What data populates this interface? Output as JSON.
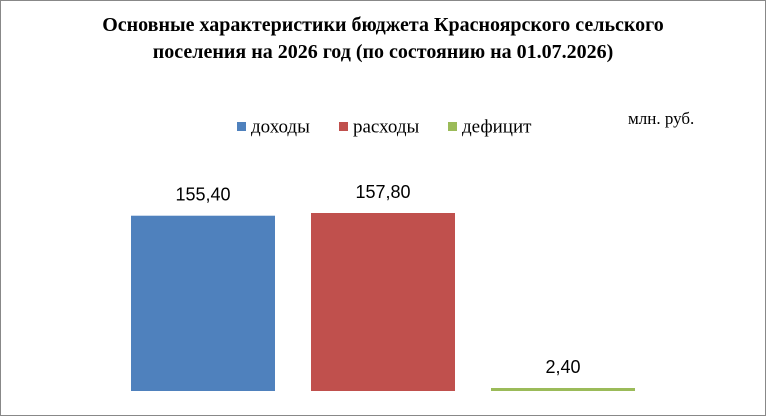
{
  "chart_data": {
    "type": "bar",
    "title": "Основные характеристики бюджета Красноярского сельского поселения на 2026 год (по состоянию на 01.07.2026)",
    "unit_label": "млн. руб.",
    "series": [
      {
        "name": "доходы",
        "color": "#4f81bd",
        "values": [
          155.4
        ],
        "value_labels": [
          "155,40"
        ]
      },
      {
        "name": "расходы",
        "color": "#c0504d",
        "values": [
          157.8
        ],
        "value_labels": [
          "157,80"
        ]
      },
      {
        "name": "дефицит",
        "color": "#9bbb59",
        "values": [
          2.4
        ],
        "value_labels": [
          "2,40"
        ]
      }
    ],
    "legend": "top"
  }
}
